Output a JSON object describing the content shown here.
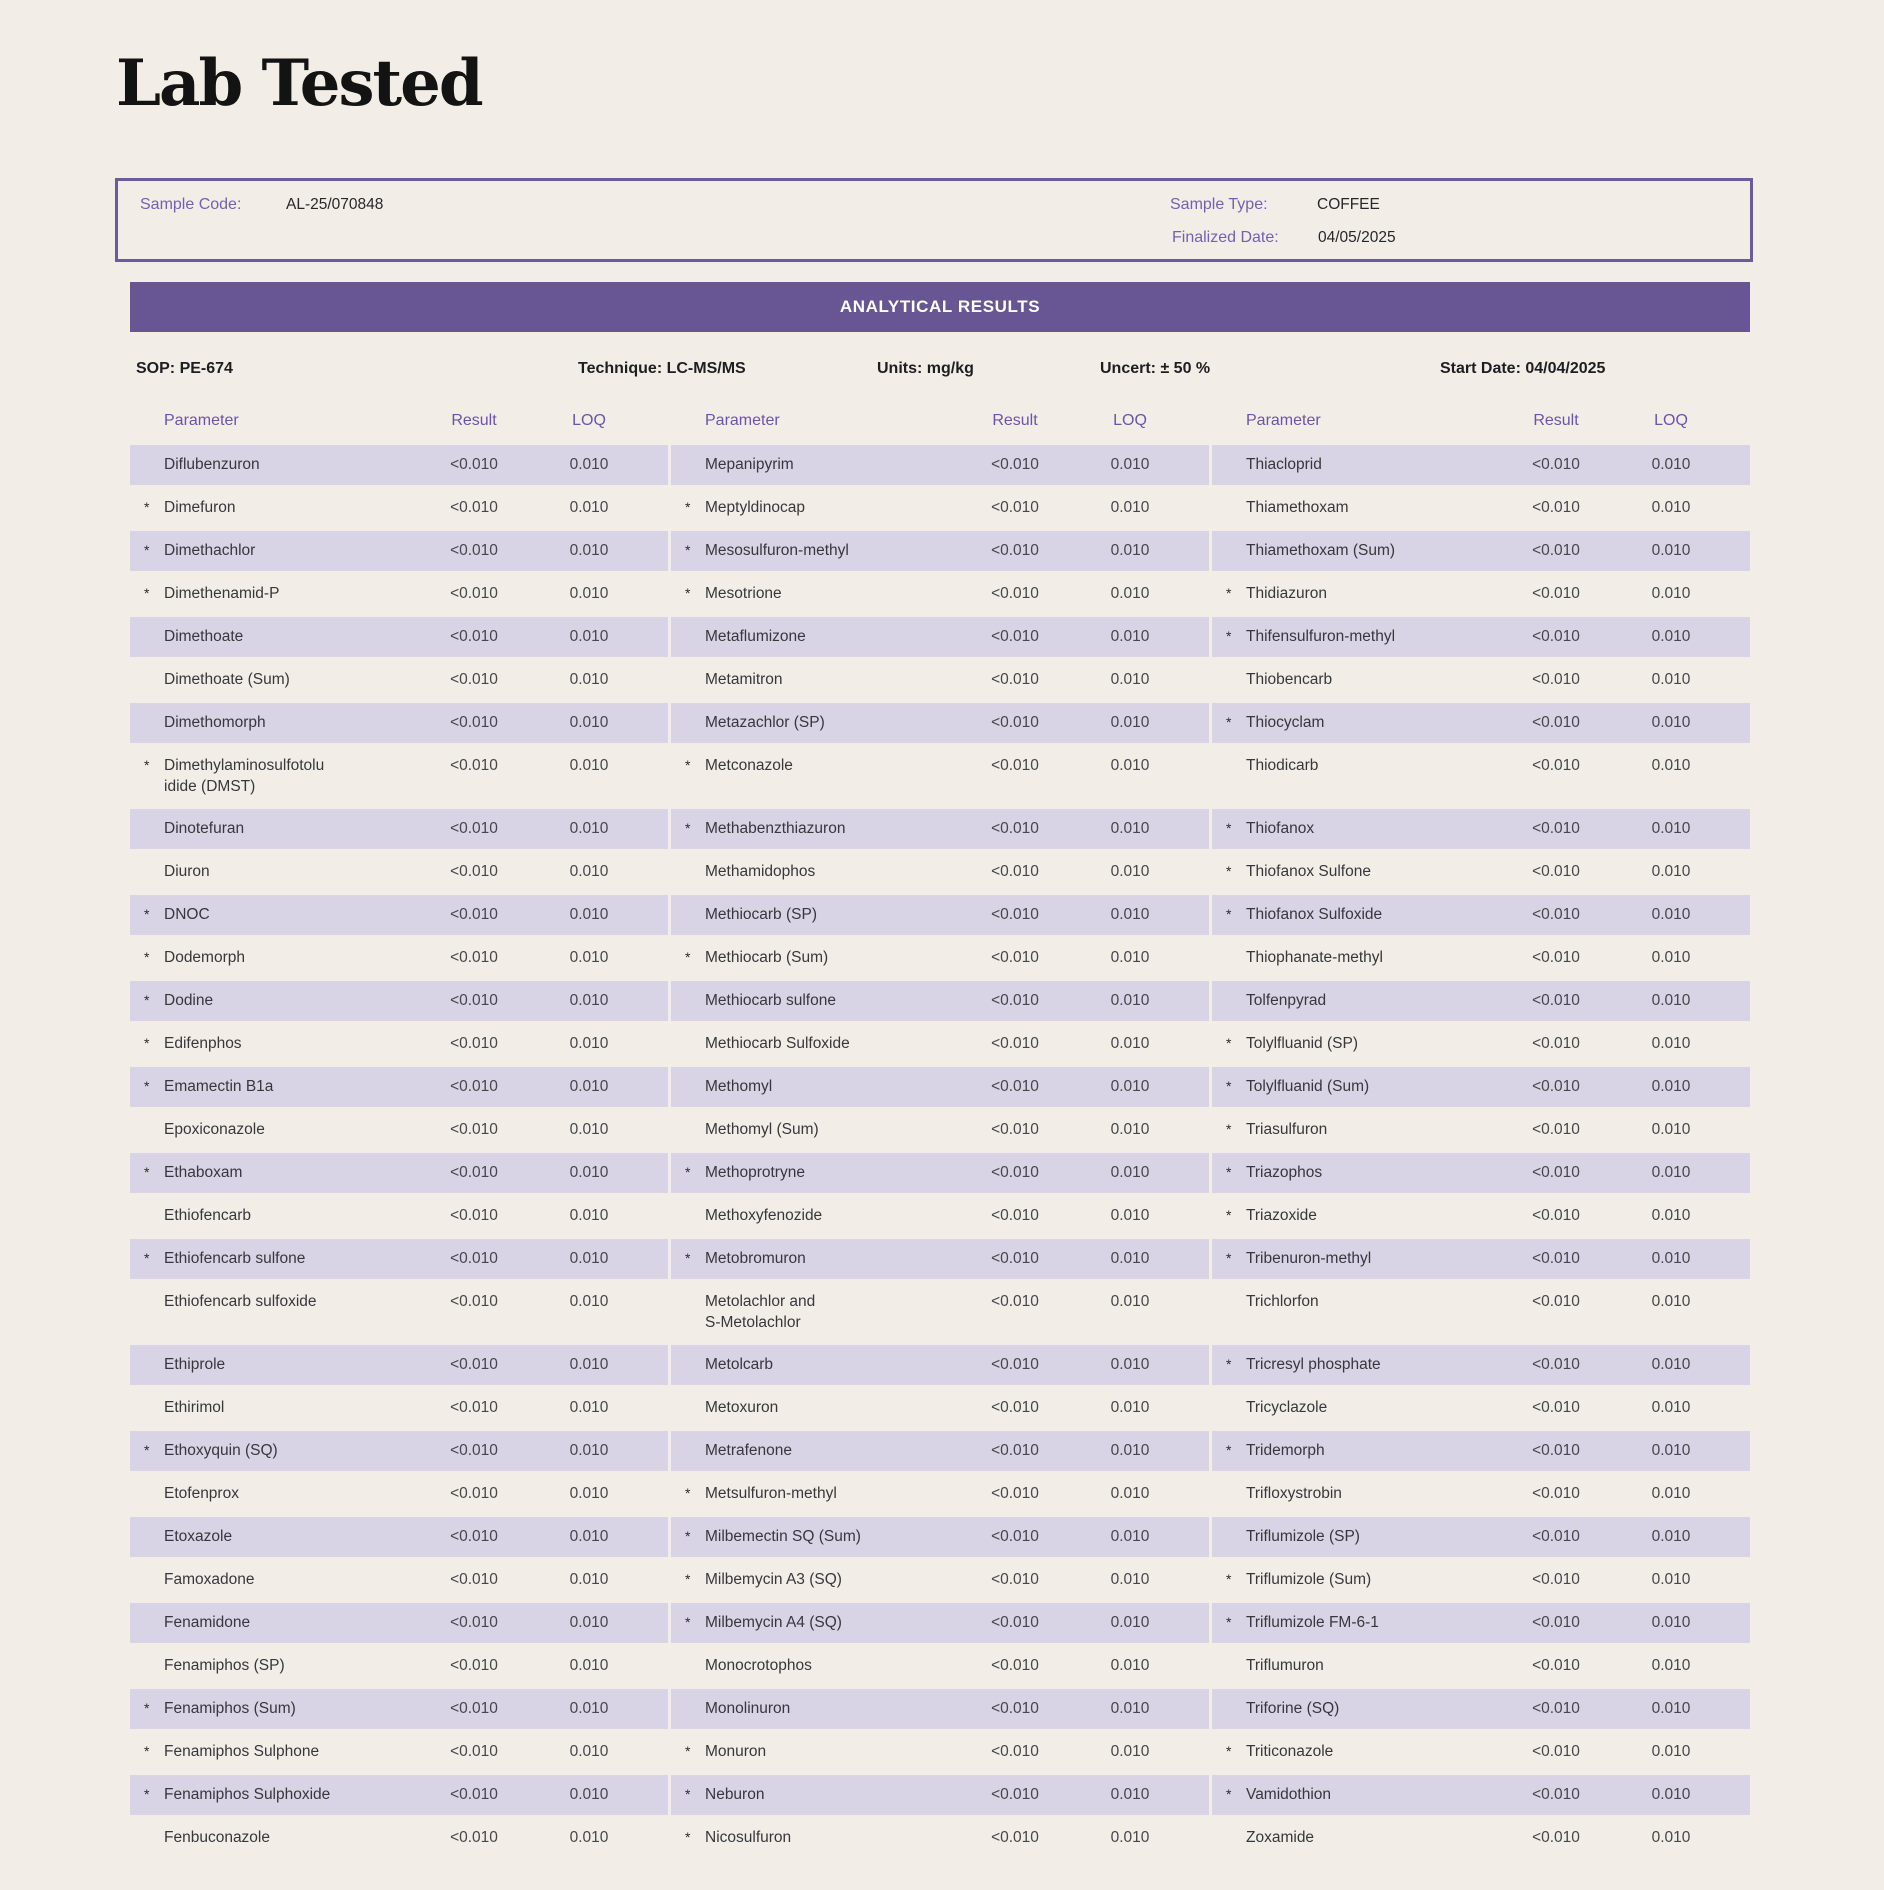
{
  "title": "Lab Tested",
  "sample": {
    "code_label": "Sample Code:",
    "code_value": "AL-25/070848",
    "type_label": "Sample Type:",
    "type_value": "COFFEE",
    "finalized_label": "Finalized Date:",
    "finalized_value": "04/05/2025"
  },
  "results_header": "ANALYTICAL RESULTS",
  "meta": {
    "sop": "SOP: PE-674",
    "technique": "Technique: LC-MS/MS",
    "units": "Units: mg/kg",
    "uncert": "Uncert: ± 50 %",
    "start_date": "Start Date: 04/04/2025"
  },
  "colors": {
    "background": "#f2eee7",
    "banner_purple": "#675693",
    "box_border_purple": "#6b5a9c",
    "row_band_lavender": "#d9d3e6",
    "label_purple": "#7560b0",
    "header_purple": "#6b54a8"
  },
  "table": {
    "asterisk_symbol": "*",
    "headers": {
      "parameter": "Parameter",
      "result": "Result",
      "loq": "LOQ"
    },
    "columns": [
      {
        "entries": [
          {
            "name": "Diflubenzuron",
            "asterisk": false,
            "result": "<0.010",
            "loq": "0.010"
          },
          {
            "name": "Dimefuron",
            "asterisk": true,
            "result": "<0.010",
            "loq": "0.010"
          },
          {
            "name": "Dimethachlor",
            "asterisk": true,
            "result": "<0.010",
            "loq": "0.010"
          },
          {
            "name": "Dimethenamid-P",
            "asterisk": true,
            "result": "<0.010",
            "loq": "0.010"
          },
          {
            "name": "Dimethoate",
            "asterisk": false,
            "result": "<0.010",
            "loq": "0.010"
          },
          {
            "name": "Dimethoate (Sum)",
            "asterisk": false,
            "result": "<0.010",
            "loq": "0.010"
          },
          {
            "name": "Dimethomorph",
            "asterisk": false,
            "result": "<0.010",
            "loq": "0.010"
          },
          {
            "name": "Dimethylaminosulfotolu\nidide (DMST)",
            "asterisk": true,
            "result": "<0.010",
            "loq": "0.010"
          },
          {
            "name": "Dinotefuran",
            "asterisk": false,
            "result": "<0.010",
            "loq": "0.010"
          },
          {
            "name": "Diuron",
            "asterisk": false,
            "result": "<0.010",
            "loq": "0.010"
          },
          {
            "name": "DNOC",
            "asterisk": true,
            "result": "<0.010",
            "loq": "0.010"
          },
          {
            "name": "Dodemorph",
            "asterisk": true,
            "result": "<0.010",
            "loq": "0.010"
          },
          {
            "name": "Dodine",
            "asterisk": true,
            "result": "<0.010",
            "loq": "0.010"
          },
          {
            "name": "Edifenphos",
            "asterisk": true,
            "result": "<0.010",
            "loq": "0.010"
          },
          {
            "name": "Emamectin B1a",
            "asterisk": true,
            "result": "<0.010",
            "loq": "0.010"
          },
          {
            "name": "Epoxiconazole",
            "asterisk": false,
            "result": "<0.010",
            "loq": "0.010"
          },
          {
            "name": "Ethaboxam",
            "asterisk": true,
            "result": "<0.010",
            "loq": "0.010"
          },
          {
            "name": "Ethiofencarb",
            "asterisk": false,
            "result": "<0.010",
            "loq": "0.010"
          },
          {
            "name": "Ethiofencarb sulfone",
            "asterisk": true,
            "result": "<0.010",
            "loq": "0.010"
          },
          {
            "name": "Ethiofencarb sulfoxide",
            "asterisk": false,
            "result": "<0.010",
            "loq": "0.010"
          },
          {
            "name": "Ethiprole",
            "asterisk": false,
            "result": "<0.010",
            "loq": "0.010"
          },
          {
            "name": "Ethirimol",
            "asterisk": false,
            "result": "<0.010",
            "loq": "0.010"
          },
          {
            "name": "Ethoxyquin (SQ)",
            "asterisk": true,
            "result": "<0.010",
            "loq": "0.010"
          },
          {
            "name": "Etofenprox",
            "asterisk": false,
            "result": "<0.010",
            "loq": "0.010"
          },
          {
            "name": "Etoxazole",
            "asterisk": false,
            "result": "<0.010",
            "loq": "0.010"
          },
          {
            "name": "Famoxadone",
            "asterisk": false,
            "result": "<0.010",
            "loq": "0.010"
          },
          {
            "name": "Fenamidone",
            "asterisk": false,
            "result": "<0.010",
            "loq": "0.010"
          },
          {
            "name": "Fenamiphos (SP)",
            "asterisk": false,
            "result": "<0.010",
            "loq": "0.010"
          },
          {
            "name": "Fenamiphos (Sum)",
            "asterisk": true,
            "result": "<0.010",
            "loq": "0.010"
          },
          {
            "name": "Fenamiphos Sulphone",
            "asterisk": true,
            "result": "<0.010",
            "loq": "0.010"
          },
          {
            "name": "Fenamiphos Sulphoxide",
            "asterisk": true,
            "result": "<0.010",
            "loq": "0.010"
          },
          {
            "name": "Fenbuconazole",
            "asterisk": false,
            "result": "<0.010",
            "loq": "0.010"
          }
        ]
      },
      {
        "entries": [
          {
            "name": "Mepanipyrim",
            "asterisk": false,
            "result": "<0.010",
            "loq": "0.010"
          },
          {
            "name": "Meptyldinocap",
            "asterisk": true,
            "result": "<0.010",
            "loq": "0.010"
          },
          {
            "name": "Mesosulfuron-methyl",
            "asterisk": true,
            "result": "<0.010",
            "loq": "0.010"
          },
          {
            "name": "Mesotrione",
            "asterisk": true,
            "result": "<0.010",
            "loq": "0.010"
          },
          {
            "name": "Metaflumizone",
            "asterisk": false,
            "result": "<0.010",
            "loq": "0.010"
          },
          {
            "name": "Metamitron",
            "asterisk": false,
            "result": "<0.010",
            "loq": "0.010"
          },
          {
            "name": "Metazachlor (SP)",
            "asterisk": false,
            "result": "<0.010",
            "loq": "0.010"
          },
          {
            "name": "Metconazole",
            "asterisk": true,
            "result": "<0.010",
            "loq": "0.010"
          },
          {
            "name": "Methabenzthiazuron",
            "asterisk": true,
            "result": "<0.010",
            "loq": "0.010"
          },
          {
            "name": "Methamidophos",
            "asterisk": false,
            "result": "<0.010",
            "loq": "0.010"
          },
          {
            "name": "Methiocarb (SP)",
            "asterisk": false,
            "result": "<0.010",
            "loq": "0.010"
          },
          {
            "name": "Methiocarb (Sum)",
            "asterisk": true,
            "result": "<0.010",
            "loq": "0.010"
          },
          {
            "name": "Methiocarb sulfone",
            "asterisk": false,
            "result": "<0.010",
            "loq": "0.010"
          },
          {
            "name": "Methiocarb Sulfoxide",
            "asterisk": false,
            "result": "<0.010",
            "loq": "0.010"
          },
          {
            "name": "Methomyl",
            "asterisk": false,
            "result": "<0.010",
            "loq": "0.010"
          },
          {
            "name": "Methomyl (Sum)",
            "asterisk": false,
            "result": "<0.010",
            "loq": "0.010"
          },
          {
            "name": "Methoprotryne",
            "asterisk": true,
            "result": "<0.010",
            "loq": "0.010"
          },
          {
            "name": "Methoxyfenozide",
            "asterisk": false,
            "result": "<0.010",
            "loq": "0.010"
          },
          {
            "name": "Metobromuron",
            "asterisk": true,
            "result": "<0.010",
            "loq": "0.010"
          },
          {
            "name": "Metolachlor and\nS-Metolachlor",
            "asterisk": false,
            "result": "<0.010",
            "loq": "0.010"
          },
          {
            "name": "Metolcarb",
            "asterisk": false,
            "result": "<0.010",
            "loq": "0.010"
          },
          {
            "name": "Metoxuron",
            "asterisk": false,
            "result": "<0.010",
            "loq": "0.010"
          },
          {
            "name": "Metrafenone",
            "asterisk": false,
            "result": "<0.010",
            "loq": "0.010"
          },
          {
            "name": "Metsulfuron-methyl",
            "asterisk": true,
            "result": "<0.010",
            "loq": "0.010"
          },
          {
            "name": "Milbemectin SQ (Sum)",
            "asterisk": true,
            "result": "<0.010",
            "loq": "0.010"
          },
          {
            "name": "Milbemycin A3 (SQ)",
            "asterisk": true,
            "result": "<0.010",
            "loq": "0.010"
          },
          {
            "name": "Milbemycin A4 (SQ)",
            "asterisk": true,
            "result": "<0.010",
            "loq": "0.010"
          },
          {
            "name": "Monocrotophos",
            "asterisk": false,
            "result": "<0.010",
            "loq": "0.010"
          },
          {
            "name": "Monolinuron",
            "asterisk": false,
            "result": "<0.010",
            "loq": "0.010"
          },
          {
            "name": "Monuron",
            "asterisk": true,
            "result": "<0.010",
            "loq": "0.010"
          },
          {
            "name": "Neburon",
            "asterisk": true,
            "result": "<0.010",
            "loq": "0.010"
          },
          {
            "name": "Nicosulfuron",
            "asterisk": true,
            "result": "<0.010",
            "loq": "0.010"
          }
        ]
      },
      {
        "entries": [
          {
            "name": "Thiacloprid",
            "asterisk": false,
            "result": "<0.010",
            "loq": "0.010"
          },
          {
            "name": "Thiamethoxam",
            "asterisk": false,
            "result": "<0.010",
            "loq": "0.010"
          },
          {
            "name": "Thiamethoxam (Sum)",
            "asterisk": false,
            "result": "<0.010",
            "loq": "0.010"
          },
          {
            "name": "Thidiazuron",
            "asterisk": true,
            "result": "<0.010",
            "loq": "0.010"
          },
          {
            "name": "Thifensulfuron-methyl",
            "asterisk": true,
            "result": "<0.010",
            "loq": "0.010"
          },
          {
            "name": "Thiobencarb",
            "asterisk": false,
            "result": "<0.010",
            "loq": "0.010"
          },
          {
            "name": "Thiocyclam",
            "asterisk": true,
            "result": "<0.010",
            "loq": "0.010"
          },
          {
            "name": "Thiodicarb",
            "asterisk": false,
            "result": "<0.010",
            "loq": "0.010"
          },
          {
            "name": "Thiofanox",
            "asterisk": true,
            "result": "<0.010",
            "loq": "0.010"
          },
          {
            "name": "Thiofanox Sulfone",
            "asterisk": true,
            "result": "<0.010",
            "loq": "0.010"
          },
          {
            "name": "Thiofanox Sulfoxide",
            "asterisk": true,
            "result": "<0.010",
            "loq": "0.010"
          },
          {
            "name": "Thiophanate-methyl",
            "asterisk": false,
            "result": "<0.010",
            "loq": "0.010"
          },
          {
            "name": "Tolfenpyrad",
            "asterisk": false,
            "result": "<0.010",
            "loq": "0.010"
          },
          {
            "name": "Tolylfluanid (SP)",
            "asterisk": true,
            "result": "<0.010",
            "loq": "0.010"
          },
          {
            "name": "Tolylfluanid (Sum)",
            "asterisk": true,
            "result": "<0.010",
            "loq": "0.010"
          },
          {
            "name": "Triasulfuron",
            "asterisk": true,
            "result": "<0.010",
            "loq": "0.010"
          },
          {
            "name": "Triazophos",
            "asterisk": true,
            "result": "<0.010",
            "loq": "0.010"
          },
          {
            "name": "Triazoxide",
            "asterisk": true,
            "result": "<0.010",
            "loq": "0.010"
          },
          {
            "name": "Tribenuron-methyl",
            "asterisk": true,
            "result": "<0.010",
            "loq": "0.010"
          },
          {
            "name": "Trichlorfon",
            "asterisk": false,
            "result": "<0.010",
            "loq": "0.010"
          },
          {
            "name": "Tricresyl phosphate",
            "asterisk": true,
            "result": "<0.010",
            "loq": "0.010"
          },
          {
            "name": "Tricyclazole",
            "asterisk": false,
            "result": "<0.010",
            "loq": "0.010"
          },
          {
            "name": "Tridemorph",
            "asterisk": true,
            "result": "<0.010",
            "loq": "0.010"
          },
          {
            "name": "Trifloxystrobin",
            "asterisk": false,
            "result": "<0.010",
            "loq": "0.010"
          },
          {
            "name": "Triflumizole (SP)",
            "asterisk": false,
            "result": "<0.010",
            "loq": "0.010"
          },
          {
            "name": "Triflumizole (Sum)",
            "asterisk": true,
            "result": "<0.010",
            "loq": "0.010"
          },
          {
            "name": "Triflumizole FM-6-1",
            "asterisk": true,
            "result": "<0.010",
            "loq": "0.010"
          },
          {
            "name": "Triflumuron",
            "asterisk": false,
            "result": "<0.010",
            "loq": "0.010"
          },
          {
            "name": "Triforine (SQ)",
            "asterisk": false,
            "result": "<0.010",
            "loq": "0.010"
          },
          {
            "name": "Triticonazole",
            "asterisk": true,
            "result": "<0.010",
            "loq": "0.010"
          },
          {
            "name": "Vamidothion",
            "asterisk": true,
            "result": "<0.010",
            "loq": "0.010"
          },
          {
            "name": "Zoxamide",
            "asterisk": false,
            "result": "<0.010",
            "loq": "0.010"
          }
        ]
      }
    ]
  }
}
